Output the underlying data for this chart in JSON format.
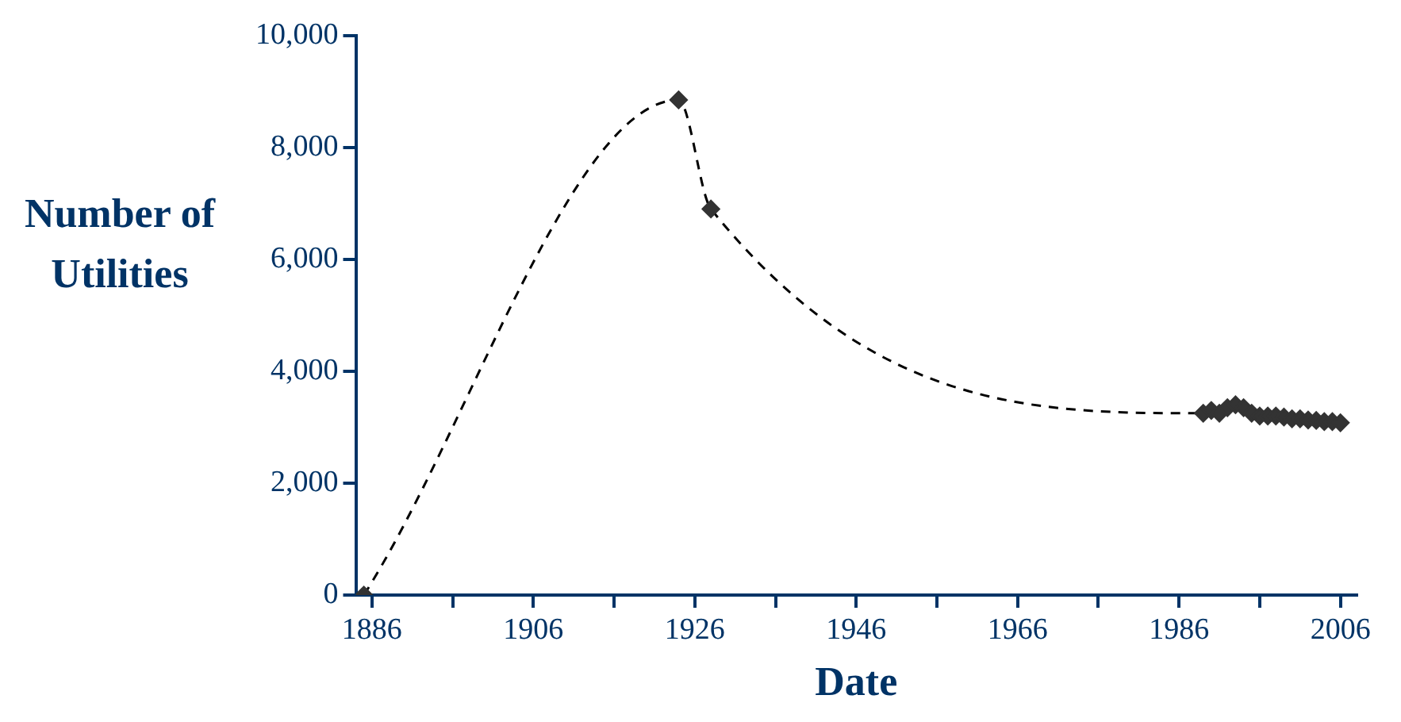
{
  "chart_data": {
    "type": "line",
    "xlabel": "Date",
    "ylabel": "Number of Utilities",
    "x": [
      1885,
      1924,
      1928,
      1989,
      1990,
      1991,
      1992,
      1993,
      1994,
      1995,
      1996,
      1997,
      1998,
      1999,
      2000,
      2001,
      2002,
      2003,
      2004,
      2005,
      2006
    ],
    "series": [
      {
        "color": "#333333",
        "values": [
          0,
          8850,
          6900,
          3250,
          3300,
          3250,
          3350,
          3400,
          3350,
          3250,
          3200,
          3200,
          3200,
          3180,
          3150,
          3150,
          3130,
          3120,
          3100,
          3100,
          3080
        ]
      }
    ],
    "xlim": [
      1884,
      2008
    ],
    "xticks": [
      1886,
      {
        "value": 1896,
        "label": null
      },
      1906,
      {
        "value": 1916,
        "label": null
      },
      1926,
      {
        "value": 1936,
        "label": null
      },
      1946,
      {
        "value": 1956,
        "label": null
      },
      1966,
      {
        "value": 1976,
        "label": null
      },
      1986,
      {
        "value": 1996,
        "label": null
      },
      2006
    ],
    "ylim": [
      0,
      10000
    ],
    "yticks": [
      {
        "value": 0,
        "label": "0"
      },
      {
        "value": 2000,
        "label": "2,000"
      },
      {
        "value": 4000,
        "label": "4,000"
      },
      {
        "value": 6000,
        "label": "6,000"
      },
      {
        "value": 8000,
        "label": "8,000"
      },
      {
        "value": 10000,
        "label": "10,000"
      }
    ],
    "grid": false,
    "legend": false,
    "marker": "diamond",
    "line_style": "dashed"
  }
}
